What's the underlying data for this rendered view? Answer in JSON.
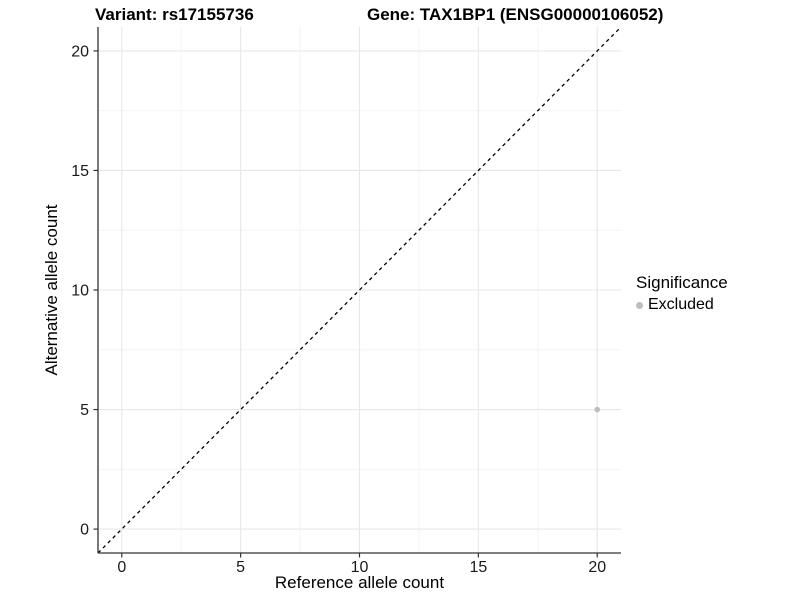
{
  "figure": {
    "title_left": "Variant: rs17155736",
    "title_right": "Gene: TAX1BP1 (ENSG00000106052)"
  },
  "chart_data": {
    "type": "scatter",
    "xlabel": "Reference allele count",
    "ylabel": "Alternative allele count",
    "xlim": [
      -1,
      21
    ],
    "ylim": [
      -1,
      21
    ],
    "xticks": [
      0,
      5,
      10,
      15,
      20
    ],
    "yticks": [
      0,
      5,
      10,
      15,
      20
    ],
    "minor_xticks": [
      2.5,
      7.5,
      12.5,
      17.5
    ],
    "minor_yticks": [
      2.5,
      7.5,
      12.5,
      17.5
    ],
    "grid": "major+minor",
    "series": [
      {
        "name": "Excluded",
        "color": "#BDBDBD",
        "points": [
          [
            20,
            5
          ]
        ]
      }
    ],
    "abline": {
      "slope": 1,
      "intercept": 0,
      "style": "dashed",
      "color": "#000000"
    },
    "legend": {
      "position": "right",
      "title": "Significance",
      "entries": [
        {
          "label": "Excluded",
          "color": "#BDBDBD"
        }
      ]
    }
  },
  "colors": {
    "background": "#FFFFFF",
    "grid_major": "#E7E7E7",
    "grid_minor": "#F4F4F4",
    "axis_line": "#333333",
    "tick_mark": "#333333",
    "text": "#000000",
    "tick_text": "#1A1A1A"
  }
}
